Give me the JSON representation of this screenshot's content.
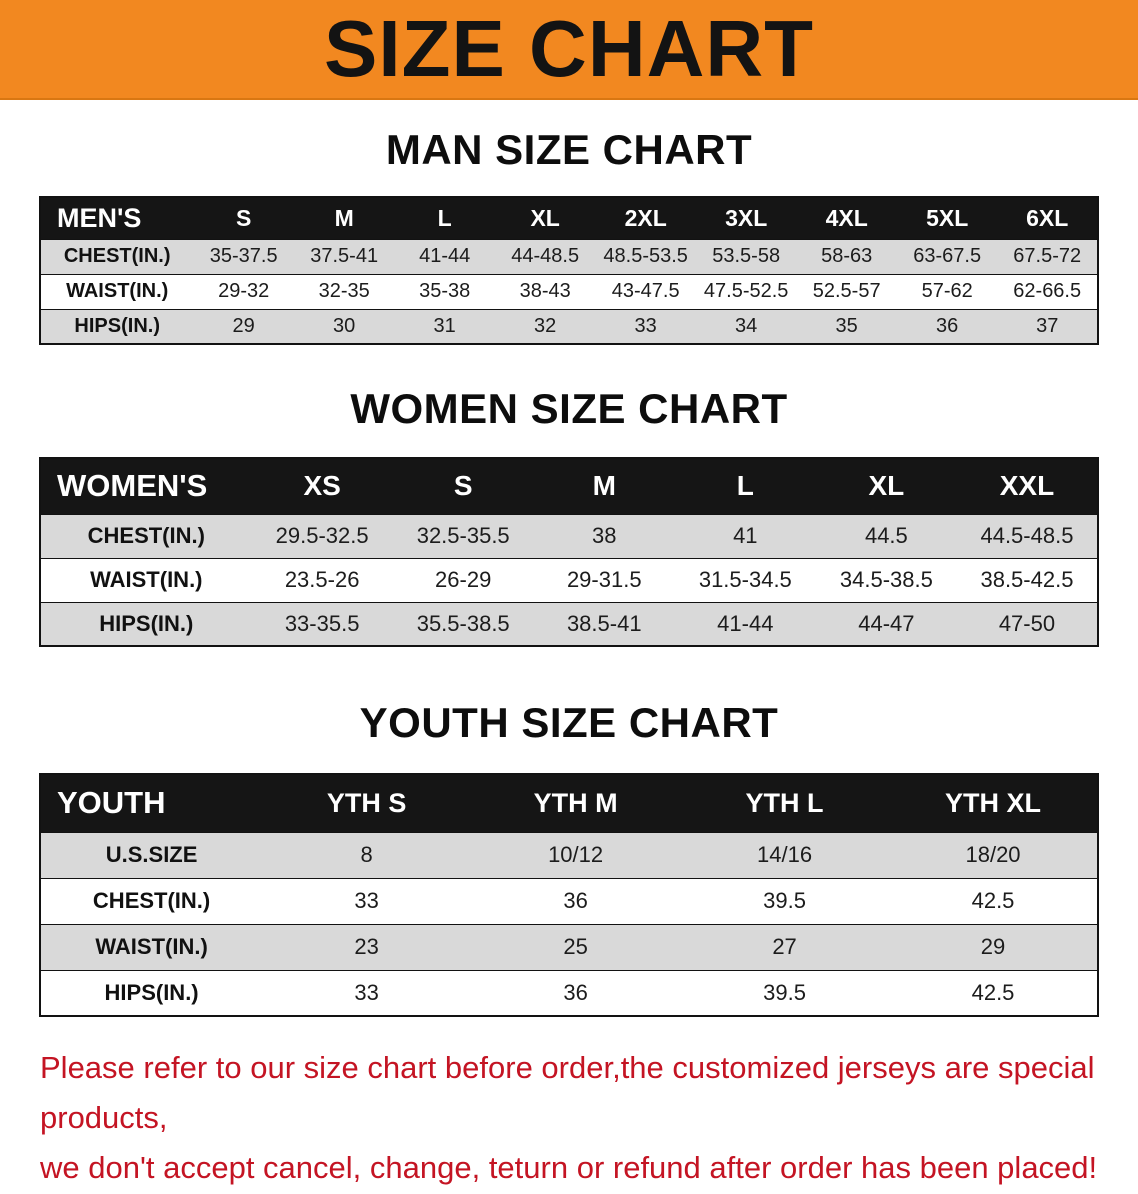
{
  "banner": {
    "title": "SIZE CHART"
  },
  "theme": {
    "banner_orange": "#f28820",
    "table_header_black": "#151515",
    "row_gray": "#d9d9d9",
    "warning_red": "#c41423"
  },
  "sections": [
    {
      "heading": "MAN SIZE CHART",
      "table": {
        "header": [
          "MEN'S",
          "S",
          "M",
          "L",
          "XL",
          "2XL",
          "3XL",
          "4XL",
          "5XL",
          "6XL"
        ],
        "rows": [
          [
            "CHEST(IN.)",
            "35-37.5",
            "37.5-41",
            "41-44",
            "44-48.5",
            "48.5-53.5",
            "53.5-58",
            "58-63",
            "63-67.5",
            "67.5-72"
          ],
          [
            "WAIST(IN.)",
            "29-32",
            "32-35",
            "35-38",
            "38-43",
            "43-47.5",
            "47.5-52.5",
            "52.5-57",
            "57-62",
            "62-66.5"
          ],
          [
            "HIPS(IN.)",
            "29",
            "30",
            "31",
            "32",
            "33",
            "34",
            "35",
            "36",
            "37"
          ]
        ]
      }
    },
    {
      "heading": "WOMEN SIZE CHART",
      "table": {
        "header": [
          "WOMEN'S",
          "XS",
          "S",
          "M",
          "L",
          "XL",
          "XXL"
        ],
        "rows": [
          [
            "CHEST(IN.)",
            "29.5-32.5",
            "32.5-35.5",
            "38",
            "41",
            "44.5",
            "44.5-48.5"
          ],
          [
            "WAIST(IN.)",
            "23.5-26",
            "26-29",
            "29-31.5",
            "31.5-34.5",
            "34.5-38.5",
            "38.5-42.5"
          ],
          [
            "HIPS(IN.)",
            "33-35.5",
            "35.5-38.5",
            "38.5-41",
            "41-44",
            "44-47",
            "47-50"
          ]
        ]
      }
    },
    {
      "heading": "YOUTH SIZE CHART",
      "table": {
        "header": [
          "YOUTH",
          "YTH S",
          "YTH M",
          "YTH L",
          "YTH XL"
        ],
        "rows": [
          [
            "U.S.SIZE",
            "8",
            "10/12",
            "14/16",
            "18/20"
          ],
          [
            "CHEST(IN.)",
            "33",
            "36",
            "39.5",
            "42.5"
          ],
          [
            "WAIST(IN.)",
            "23",
            "25",
            "27",
            "29"
          ],
          [
            "HIPS(IN.)",
            "33",
            "36",
            "39.5",
            "42.5"
          ]
        ]
      }
    }
  ],
  "footer": {
    "line1": "Please refer to our size chart before order,the customized jerseys are special products,",
    "line2": "we don't accept cancel, change, teturn or refund after order has been placed!"
  }
}
